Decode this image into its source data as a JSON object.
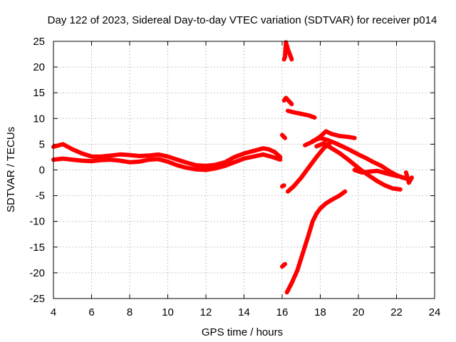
{
  "chart_data": {
    "type": "scatter",
    "title": "Day 122 of 2023, Sidereal Day-to-day VTEC variation (SDTVAR) for receiver p014",
    "xlabel": "GPS time / hours",
    "ylabel": "SDTVAR / TECUs",
    "xlim": [
      4,
      24
    ],
    "ylim": [
      -25,
      25
    ],
    "xticks": [
      4,
      6,
      8,
      10,
      12,
      14,
      16,
      18,
      20,
      22,
      24
    ],
    "yticks": [
      25,
      20,
      15,
      10,
      5,
      0,
      -5,
      -10,
      -15,
      -20,
      -25
    ],
    "grid": true,
    "color": "#ff0000",
    "series": [
      {
        "name": "band-upper",
        "x": [
          4.0,
          4.5,
          5.0,
          5.5,
          6.0,
          6.5,
          7.0,
          7.5,
          8.0,
          8.5,
          9.0,
          9.5,
          10.0,
          10.5,
          11.0,
          11.5,
          12.0,
          12.5,
          13.0,
          13.5,
          14.0,
          14.5,
          15.0,
          15.3,
          15.6,
          15.9
        ],
        "y": [
          4.5,
          5.0,
          4.0,
          3.2,
          2.6,
          2.6,
          2.8,
          3.0,
          2.9,
          2.7,
          2.8,
          3.0,
          2.6,
          2.0,
          1.4,
          0.9,
          0.8,
          1.0,
          1.5,
          2.5,
          3.2,
          3.7,
          4.2,
          4.0,
          3.5,
          2.5
        ]
      },
      {
        "name": "band-lower",
        "x": [
          4.0,
          4.5,
          5.0,
          5.5,
          6.0,
          6.5,
          7.0,
          7.5,
          8.0,
          8.5,
          9.0,
          9.5,
          10.0,
          10.5,
          11.0,
          11.5,
          12.0,
          12.5,
          13.0,
          13.5,
          14.0,
          14.5,
          15.0,
          15.5,
          15.9
        ],
        "y": [
          2.0,
          2.2,
          2.0,
          1.8,
          1.7,
          1.9,
          2.0,
          1.8,
          1.5,
          1.6,
          2.0,
          2.1,
          1.6,
          0.9,
          0.4,
          0.1,
          0.0,
          0.3,
          0.8,
          1.5,
          2.2,
          2.6,
          3.0,
          2.5,
          2.0
        ]
      },
      {
        "name": "top-arc",
        "x": [
          16.1,
          16.15,
          16.2,
          16.3,
          16.4,
          16.5
        ],
        "y": [
          21.5,
          22.0,
          24.8,
          23.5,
          22.5,
          21.5
        ]
      },
      {
        "name": "arc-14",
        "x": [
          16.1,
          16.2,
          16.3,
          16.4,
          16.5
        ],
        "y": [
          13.5,
          14.0,
          13.6,
          13.2,
          12.8
        ]
      },
      {
        "name": "arc-11",
        "x": [
          16.3,
          16.6,
          17.0,
          17.4,
          17.7
        ],
        "y": [
          11.5,
          11.2,
          10.9,
          10.6,
          10.2
        ]
      },
      {
        "name": "seg-65",
        "x": [
          16.0,
          16.15
        ],
        "y": [
          6.8,
          6.2
        ]
      },
      {
        "name": "rising-mid",
        "x": [
          16.3,
          16.6,
          17.0,
          17.4,
          17.8,
          18.2,
          18.5
        ],
        "y": [
          -4.2,
          -3.2,
          -1.5,
          0.5,
          2.5,
          4.3,
          5.2
        ]
      },
      {
        "name": "rising-steep",
        "x": [
          16.25,
          16.5,
          16.8,
          17.1,
          17.4,
          17.6,
          17.8,
          18.0,
          18.3,
          18.6,
          19.0,
          19.3
        ],
        "y": [
          -23.8,
          -22.0,
          -19.5,
          -16.0,
          -12.5,
          -10.0,
          -8.5,
          -7.5,
          -6.5,
          -5.8,
          -5.0,
          -4.2
        ]
      },
      {
        "name": "seg-neg19",
        "x": [
          16.0,
          16.15
        ],
        "y": [
          -18.8,
          -18.3
        ]
      },
      {
        "name": "seg-neg3",
        "x": [
          16.0,
          16.1
        ],
        "y": [
          -3.2,
          -3.0
        ]
      },
      {
        "name": "peak-upper",
        "x": [
          17.2,
          17.6,
          18.0,
          18.3,
          18.6,
          19.0,
          19.5,
          19.8
        ],
        "y": [
          4.8,
          5.5,
          6.5,
          7.5,
          7.0,
          6.6,
          6.4,
          6.2
        ]
      },
      {
        "name": "peak-main",
        "x": [
          17.6,
          18.0,
          18.4,
          18.8,
          19.2,
          19.6,
          20.0,
          20.4,
          20.8,
          21.2,
          21.6,
          22.0,
          22.3
        ],
        "y": [
          5.6,
          6.2,
          5.8,
          5.2,
          4.5,
          3.8,
          3.0,
          2.3,
          1.5,
          0.8,
          -0.2,
          -1.0,
          -1.5
        ]
      },
      {
        "name": "descent-lower",
        "x": [
          17.8,
          18.2,
          18.6,
          19.0,
          19.4,
          19.8,
          20.2,
          20.6,
          21.0,
          21.4,
          21.8,
          22.2
        ],
        "y": [
          4.6,
          5.2,
          4.2,
          3.3,
          2.2,
          1.0,
          -0.2,
          -1.2,
          -2.2,
          -3.0,
          -3.6,
          -3.8
        ]
      },
      {
        "name": "tail-flat",
        "x": [
          19.8,
          20.2,
          20.6,
          21.0,
          21.4,
          21.8,
          22.2,
          22.6
        ],
        "y": [
          0.0,
          -0.5,
          -0.3,
          -0.2,
          -0.6,
          -1.0,
          -1.3,
          -1.8
        ]
      },
      {
        "name": "tail-end",
        "x": [
          22.5,
          22.65,
          22.8
        ],
        "y": [
          -0.5,
          -2.5,
          -1.5
        ]
      }
    ]
  }
}
